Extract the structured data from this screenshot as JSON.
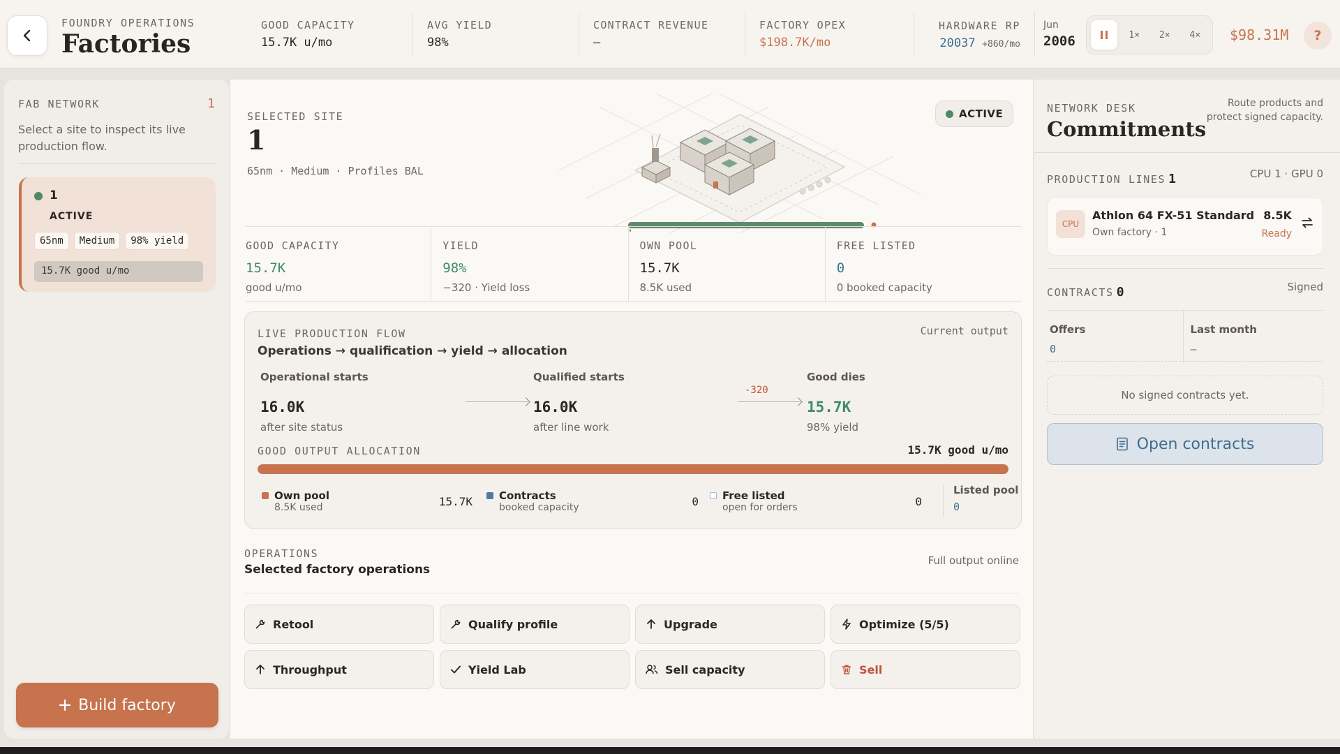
{
  "header": {
    "eyebrow": "FOUNDRY OPERATIONS",
    "title": "Factories",
    "stats": [
      {
        "label": "GOOD CAPACITY",
        "value": "15.7K u/mo"
      },
      {
        "label": "AVG YIELD",
        "value": "98%"
      },
      {
        "label": "CONTRACT REVENUE",
        "value": "—"
      },
      {
        "label": "FACTORY OPEX",
        "value": "$198.7K/mo"
      }
    ],
    "hardware": {
      "label": "HARDWARE RP",
      "value": "20037",
      "rate": "+860/mo"
    },
    "date": {
      "month": "Jun",
      "year": "2006"
    },
    "speeds": [
      "1×",
      "2×",
      "4×"
    ],
    "cash": "$98.31M",
    "help": "?"
  },
  "left": {
    "caption": "FAB NETWORK",
    "count": "1",
    "description": "Select a site to inspect its live production flow.",
    "site": {
      "name": "1",
      "status": "ACTIVE",
      "tags": [
        "65nm",
        "Medium",
        "98% yield"
      ],
      "output": "15.7K good u/mo"
    },
    "build_label": "Build factory"
  },
  "center": {
    "caption": "SELECTED SITE",
    "name": "1",
    "meta": "65nm · Medium · Profiles BAL",
    "badge": "ACTIVE",
    "stats": [
      {
        "label": "GOOD CAPACITY",
        "value": "15.7K",
        "sub": "good u/mo"
      },
      {
        "label": "YIELD",
        "value": "98%",
        "sub": "−320 · Yield loss"
      },
      {
        "label": "OWN POOL",
        "value": "15.7K",
        "sub": "8.5K used"
      },
      {
        "label": "FREE LISTED",
        "value": "0",
        "sub": "0 booked capacity"
      }
    ],
    "flow": {
      "caption": "LIVE PRODUCTION FLOW",
      "note": "Current output",
      "subtitle": "Operations → qualification → yield → allocation",
      "steps": [
        {
          "label": "Operational starts",
          "value": "16.0K",
          "sub": "after site status"
        },
        {
          "label": "Qualified starts",
          "value": "16.0K",
          "sub": "after line work"
        },
        {
          "label": "Good dies",
          "value": "15.7K",
          "sub": "98% yield"
        }
      ],
      "loss": "-320",
      "alloc_caption": "GOOD OUTPUT ALLOCATION",
      "alloc_total": "15.7K good u/mo",
      "alloc_fraction": 1.0,
      "legend": [
        {
          "title": "Own pool",
          "sub": "8.5K used",
          "value": "15.7K",
          "color": "#c6734e"
        },
        {
          "title": "Contracts",
          "sub": "booked capacity",
          "value": "0",
          "color": "#4f78a8"
        },
        {
          "title": "Free listed",
          "sub": "open for orders",
          "value": "0",
          "color": "#9fb6cc"
        }
      ],
      "listed": {
        "title": "Listed pool",
        "value": "0"
      }
    },
    "ops": {
      "caption": "OPERATIONS",
      "title": "Selected factory operations",
      "note": "Full output online",
      "buttons": [
        {
          "label": "Retool",
          "icon": "wrench-icon"
        },
        {
          "label": "Qualify profile",
          "icon": "wrench-icon"
        },
        {
          "label": "Upgrade",
          "icon": "arrow-up-icon"
        },
        {
          "label": "Optimize (5/5)",
          "icon": "bolt-icon"
        },
        {
          "label": "Throughput",
          "icon": "arrow-up-icon"
        },
        {
          "label": "Yield Lab",
          "icon": "check-icon"
        },
        {
          "label": "Sell capacity",
          "icon": "users-icon"
        },
        {
          "label": "Sell",
          "icon": "trash-icon"
        }
      ]
    }
  },
  "right": {
    "caption": "NETWORK DESK",
    "title": "Commitments",
    "note": "Route products and protect signed capacity.",
    "lines": {
      "caption": "PRODUCTION LINES",
      "count": "1",
      "meta": "CPU 1 · GPU 0",
      "item": {
        "chip": "CPU",
        "name": "Athlon 64 FX-51 Standard",
        "sub": "Own factory · 1",
        "value": "8.5K",
        "status": "Ready"
      }
    },
    "contracts": {
      "caption": "CONTRACTS",
      "count": "0",
      "signed": "Signed",
      "offers_label": "Offers",
      "offers_value": "0",
      "last_label": "Last month",
      "last_value": "—",
      "empty": "No signed contracts yet.",
      "open_label": "Open contracts"
    }
  }
}
